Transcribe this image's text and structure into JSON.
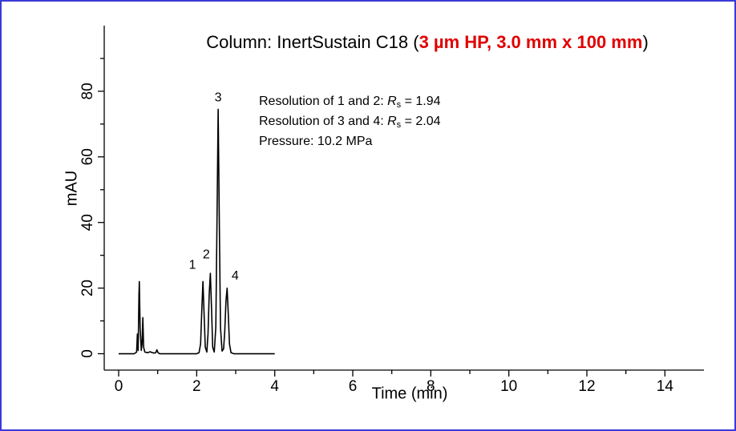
{
  "chart_data": {
    "type": "line",
    "title": {
      "part1": "Column: InertSustain C18 (",
      "highlight": "3 µm HP, 3.0 mm x 100 mm",
      "part2": ")"
    },
    "highlight_color": "#e00000",
    "x_label": "Time (min)",
    "y_label": "mAU",
    "annotations": [
      {
        "prefix": "Resolution of 1 and 2: ",
        "symbol": "R",
        "subscript": "s",
        "suffix": " = 1.94"
      },
      {
        "prefix": "Resolution of 3 and 4: ",
        "symbol": "R",
        "subscript": "s",
        "suffix": " = 2.04"
      },
      {
        "prefix": "Pressure: 10.2 MPa"
      }
    ],
    "peak_labels": [
      {
        "text": "1",
        "x": 2.16,
        "y": 22
      },
      {
        "text": "2",
        "x": 2.35,
        "y": 24.5
      },
      {
        "text": "3",
        "x": 2.55,
        "y": 74.5
      },
      {
        "text": "4",
        "x": 2.78,
        "y": 20
      }
    ],
    "x": [
      0,
      0.4,
      0.46,
      0.48,
      0.5,
      0.52,
      0.53,
      0.55,
      0.58,
      0.6,
      0.62,
      0.64,
      0.67,
      0.75,
      0.8,
      0.9,
      0.95,
      0.98,
      1.01,
      1.05,
      1.5,
      2.0,
      2.06,
      2.1,
      2.13,
      2.16,
      2.19,
      2.22,
      2.26,
      2.29,
      2.32,
      2.35,
      2.38,
      2.41,
      2.45,
      2.49,
      2.52,
      2.55,
      2.58,
      2.61,
      2.65,
      2.69,
      2.72,
      2.75,
      2.78,
      2.81,
      2.84,
      2.88,
      2.95,
      3.2,
      4.0
    ],
    "series": [
      {
        "color": "#000000",
        "values": [
          0,
          0,
          0.5,
          6,
          1,
          18,
          22,
          8,
          1,
          3,
          11,
          2,
          0.5,
          0.3,
          0.6,
          0.2,
          0.3,
          1.2,
          0.3,
          0,
          0,
          0,
          0.3,
          3,
          13,
          22,
          12,
          2,
          0.5,
          6,
          18,
          24.5,
          14,
          2,
          0.5,
          8,
          40,
          74.5,
          40,
          8,
          0.8,
          1.5,
          7,
          16,
          20,
          12,
          3,
          0.3,
          0,
          0,
          0
        ]
      }
    ],
    "xlim": [
      0,
      15
    ],
    "ylim": [
      -5,
      100
    ],
    "xticks": [
      0,
      2,
      4,
      6,
      8,
      10,
      12,
      14
    ],
    "xticks_minor": [
      1,
      3,
      5,
      7,
      9,
      11,
      13
    ],
    "yticks": [
      0,
      20,
      40,
      60,
      80
    ],
    "yticks_minor": [
      10,
      30,
      50,
      70,
      90
    ]
  }
}
